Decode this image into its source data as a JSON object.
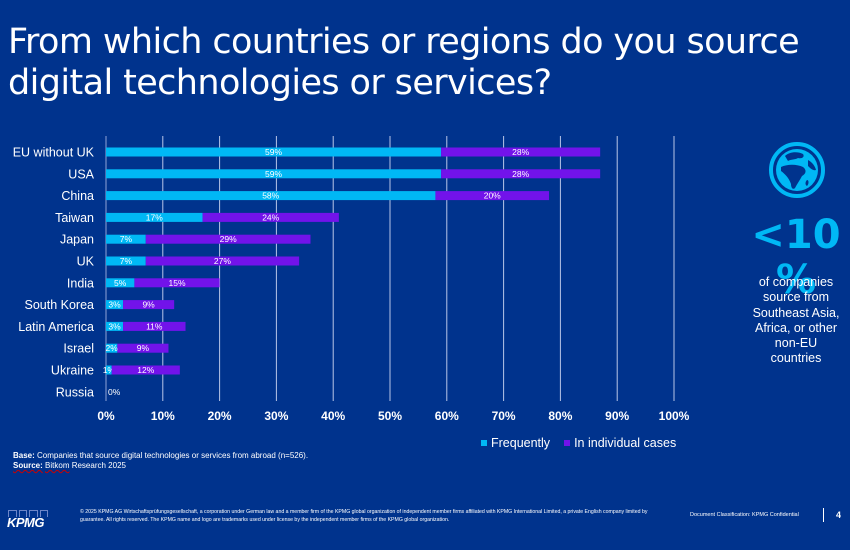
{
  "title": "From which countries or regions do you source digital technologies or services?",
  "chart_data": {
    "type": "bar",
    "orientation": "horizontal",
    "stacked": true,
    "title": "From which countries or regions do you source digital technologies or services?",
    "xlabel": "",
    "ylabel": "",
    "xlim": [
      0,
      100
    ],
    "x_ticks": [
      "0%",
      "10%",
      "20%",
      "30%",
      "40%",
      "50%",
      "60%",
      "70%",
      "80%",
      "90%",
      "100%"
    ],
    "grid": true,
    "legend_position": "bottom-right",
    "categories": [
      "EU without UK",
      "USA",
      "China",
      "Taiwan",
      "Japan",
      "UK",
      "India",
      "South Korea",
      "Latin America",
      "Israel",
      "Ukraine",
      "Russia"
    ],
    "series": [
      {
        "name": "Frequently",
        "color": "#00B8F5",
        "values": [
          59,
          59,
          58,
          17,
          7,
          7,
          5,
          3,
          3,
          2,
          1,
          0
        ]
      },
      {
        "name": "In individual cases",
        "color": "#7213EA",
        "values": [
          28,
          28,
          20,
          24,
          29,
          27,
          15,
          9,
          11,
          9,
          12,
          0
        ]
      }
    ],
    "zero_label": "0%"
  },
  "legend": [
    {
      "label": "Frequently",
      "color": "#00B8F5"
    },
    {
      "label": "In individual cases",
      "color": "#7213EA"
    }
  ],
  "base_note": {
    "base_label": "Base:",
    "base_text": " Companies that source digital technologies or services from abroad (n=526).",
    "source_label": "Source:",
    "source_name": "Bitkom",
    "source_text": " Research 2025"
  },
  "callout": {
    "icon": "globe-icon",
    "stat_line1": "<10",
    "stat_line2": "%",
    "text": "of companies source from Southeast Asia, Africa, or other non-EU countries"
  },
  "footer": {
    "logo": "KPMG",
    "copyright": "© 2025 KPMG AG Wirtschaftsprüfungsgesellschaft, a corporation under German law and a member firm of the KPMG global organization of independent member firms affiliated with KPMG International Limited, a private English company limited by guarantee. All rights reserved. The KPMG name and logo are trademarks used under license by the independent member firms of the KPMG global organization.",
    "classification": "Document Classification: KPMG Confidential",
    "page_number": "4"
  },
  "colors": {
    "background": "#00338D",
    "frequently": "#00B8F5",
    "individual": "#7213EA",
    "accent": "#00B8F5"
  }
}
